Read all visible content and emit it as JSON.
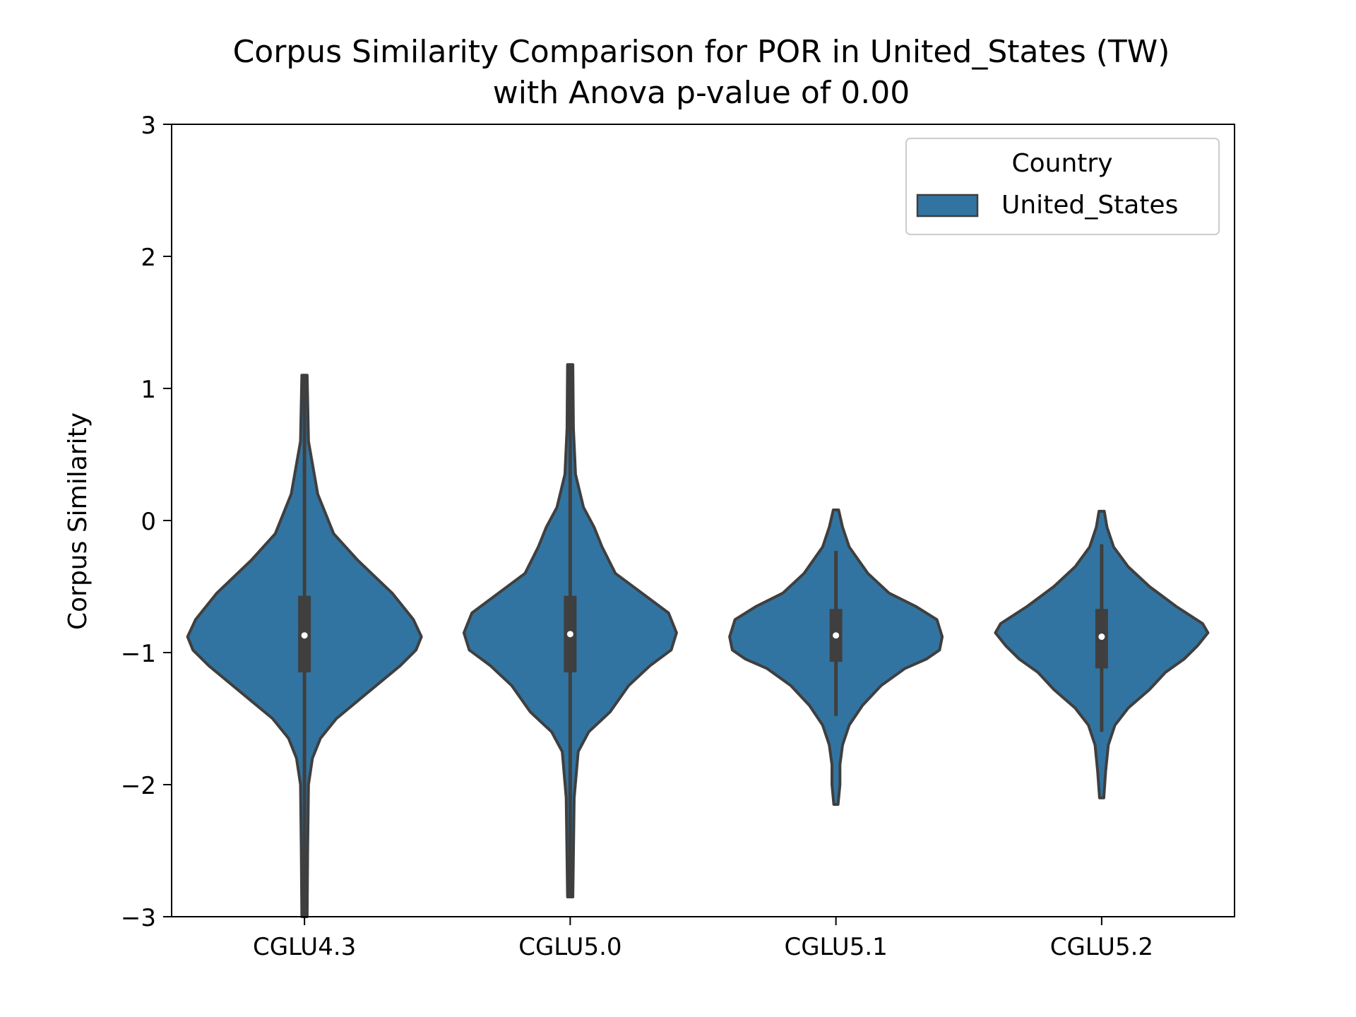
{
  "chart_data": {
    "type": "violin",
    "title_line1": "Corpus Similarity Comparison for POR in United_States (TW)",
    "title_line2": "with Anova p-value of 0.00",
    "xlabel": "",
    "ylabel": "Corpus Similarity",
    "ylim": [
      -3,
      3
    ],
    "yticks": [
      -3,
      -2,
      -1,
      0,
      1,
      2,
      3
    ],
    "ytick_labels": [
      "−3",
      "−2",
      "−1",
      "0",
      "1",
      "2",
      "3"
    ],
    "categories": [
      "CGLU4.3",
      "CGLU5.0",
      "CGLU5.1",
      "CGLU5.2"
    ],
    "legend": {
      "title": "Country",
      "entries": [
        "United_States"
      ],
      "position": "upper right"
    },
    "colors": {
      "fill": "#3274a1",
      "edge": "#3f3f3f",
      "box": "#3f3f3f",
      "median": "#ffffff"
    },
    "grid": false,
    "series": [
      {
        "category": "CGLU4.3",
        "box": {
          "min": -3.0,
          "q1": -1.15,
          "median": -0.87,
          "q3": -0.57,
          "max": 1.1
        },
        "profile": [
          [
            1.1,
            0.01
          ],
          [
            0.6,
            0.015
          ],
          [
            0.2,
            0.05
          ],
          [
            -0.1,
            0.11
          ],
          [
            -0.3,
            0.2
          ],
          [
            -0.55,
            0.33
          ],
          [
            -0.75,
            0.41
          ],
          [
            -0.88,
            0.44
          ],
          [
            -0.98,
            0.42
          ],
          [
            -1.1,
            0.36
          ],
          [
            -1.3,
            0.24
          ],
          [
            -1.5,
            0.12
          ],
          [
            -1.65,
            0.06
          ],
          [
            -1.8,
            0.03
          ],
          [
            -2.0,
            0.015
          ],
          [
            -2.5,
            0.012
          ],
          [
            -3.0,
            0.01
          ]
        ]
      },
      {
        "category": "CGLU5.0",
        "box": {
          "min": -2.85,
          "q1": -1.15,
          "median": -0.86,
          "q3": -0.57,
          "max": 1.18
        },
        "profile": [
          [
            1.18,
            0.01
          ],
          [
            0.7,
            0.012
          ],
          [
            0.35,
            0.02
          ],
          [
            0.1,
            0.05
          ],
          [
            -0.05,
            0.09
          ],
          [
            -0.2,
            0.12
          ],
          [
            -0.4,
            0.17
          ],
          [
            -0.55,
            0.27
          ],
          [
            -0.7,
            0.37
          ],
          [
            -0.85,
            0.4
          ],
          [
            -0.98,
            0.38
          ],
          [
            -1.1,
            0.3
          ],
          [
            -1.25,
            0.22
          ],
          [
            -1.45,
            0.15
          ],
          [
            -1.6,
            0.07
          ],
          [
            -1.75,
            0.03
          ],
          [
            -2.1,
            0.015
          ],
          [
            -2.85,
            0.01
          ]
        ]
      },
      {
        "category": "CGLU5.1",
        "box": {
          "min": -1.48,
          "q1": -1.07,
          "median": -0.87,
          "q3": -0.67,
          "max": -0.23
        },
        "profile": [
          [
            0.08,
            0.01
          ],
          [
            -0.05,
            0.025
          ],
          [
            -0.2,
            0.05
          ],
          [
            -0.4,
            0.12
          ],
          [
            -0.55,
            0.2
          ],
          [
            -0.65,
            0.3
          ],
          [
            -0.75,
            0.38
          ],
          [
            -0.88,
            0.4
          ],
          [
            -0.98,
            0.39
          ],
          [
            -1.05,
            0.34
          ],
          [
            -1.12,
            0.26
          ],
          [
            -1.25,
            0.17
          ],
          [
            -1.4,
            0.1
          ],
          [
            -1.55,
            0.05
          ],
          [
            -1.7,
            0.025
          ],
          [
            -1.85,
            0.015
          ],
          [
            -2.0,
            0.015
          ],
          [
            -2.15,
            0.008
          ]
        ]
      },
      {
        "category": "CGLU5.2",
        "box": {
          "min": -1.6,
          "q1": -1.12,
          "median": -0.88,
          "q3": -0.67,
          "max": -0.18
        },
        "profile": [
          [
            0.07,
            0.01
          ],
          [
            -0.05,
            0.02
          ],
          [
            -0.2,
            0.045
          ],
          [
            -0.35,
            0.1
          ],
          [
            -0.5,
            0.18
          ],
          [
            -0.65,
            0.28
          ],
          [
            -0.78,
            0.38
          ],
          [
            -0.85,
            0.4
          ],
          [
            -0.95,
            0.36
          ],
          [
            -1.05,
            0.31
          ],
          [
            -1.15,
            0.24
          ],
          [
            -1.28,
            0.18
          ],
          [
            -1.42,
            0.1
          ],
          [
            -1.55,
            0.05
          ],
          [
            -1.7,
            0.025
          ],
          [
            -1.9,
            0.015
          ],
          [
            -2.1,
            0.008
          ]
        ]
      }
    ]
  }
}
